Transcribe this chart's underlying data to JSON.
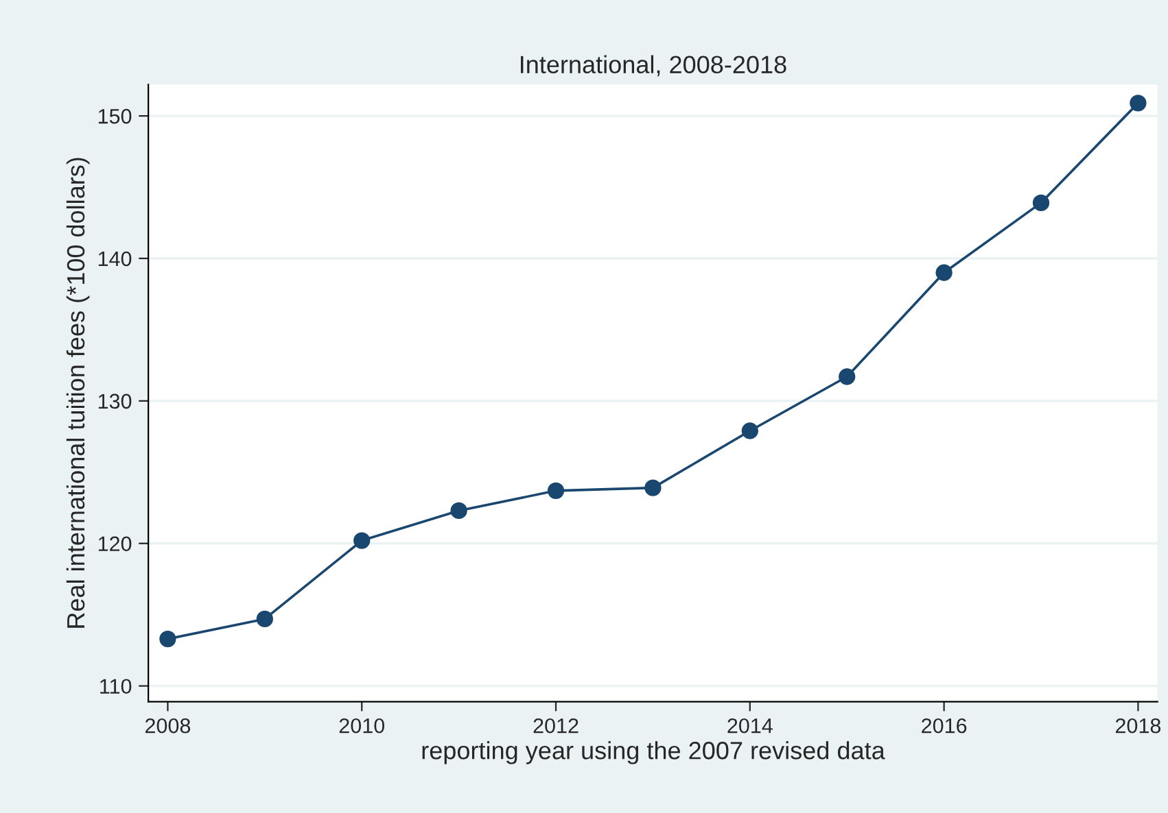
{
  "chart_data": {
    "type": "line",
    "title": "International, 2008-2018",
    "xlabel": "reporting year using the 2007 revised data",
    "ylabel": "Real international tuition fees (*100 dollars)",
    "x": [
      2008,
      2009,
      2010,
      2011,
      2012,
      2013,
      2014,
      2015,
      2016,
      2017,
      2018
    ],
    "series": [
      {
        "color": "#1a476f",
        "values": [
          113.3,
          114.7,
          120.2,
          122.3,
          123.7,
          123.9,
          127.9,
          131.7,
          139.0,
          143.9,
          150.9
        ]
      }
    ],
    "xlim": [
      2007.8,
      2018.2
    ],
    "xticks": [
      2008,
      2010,
      2012,
      2014,
      2016,
      2018
    ],
    "ylim": [
      108.9,
      152.2
    ],
    "yticks": [
      110,
      120,
      130,
      140,
      150
    ],
    "grid": "y",
    "marker": "circle",
    "line_style": "solid"
  }
}
